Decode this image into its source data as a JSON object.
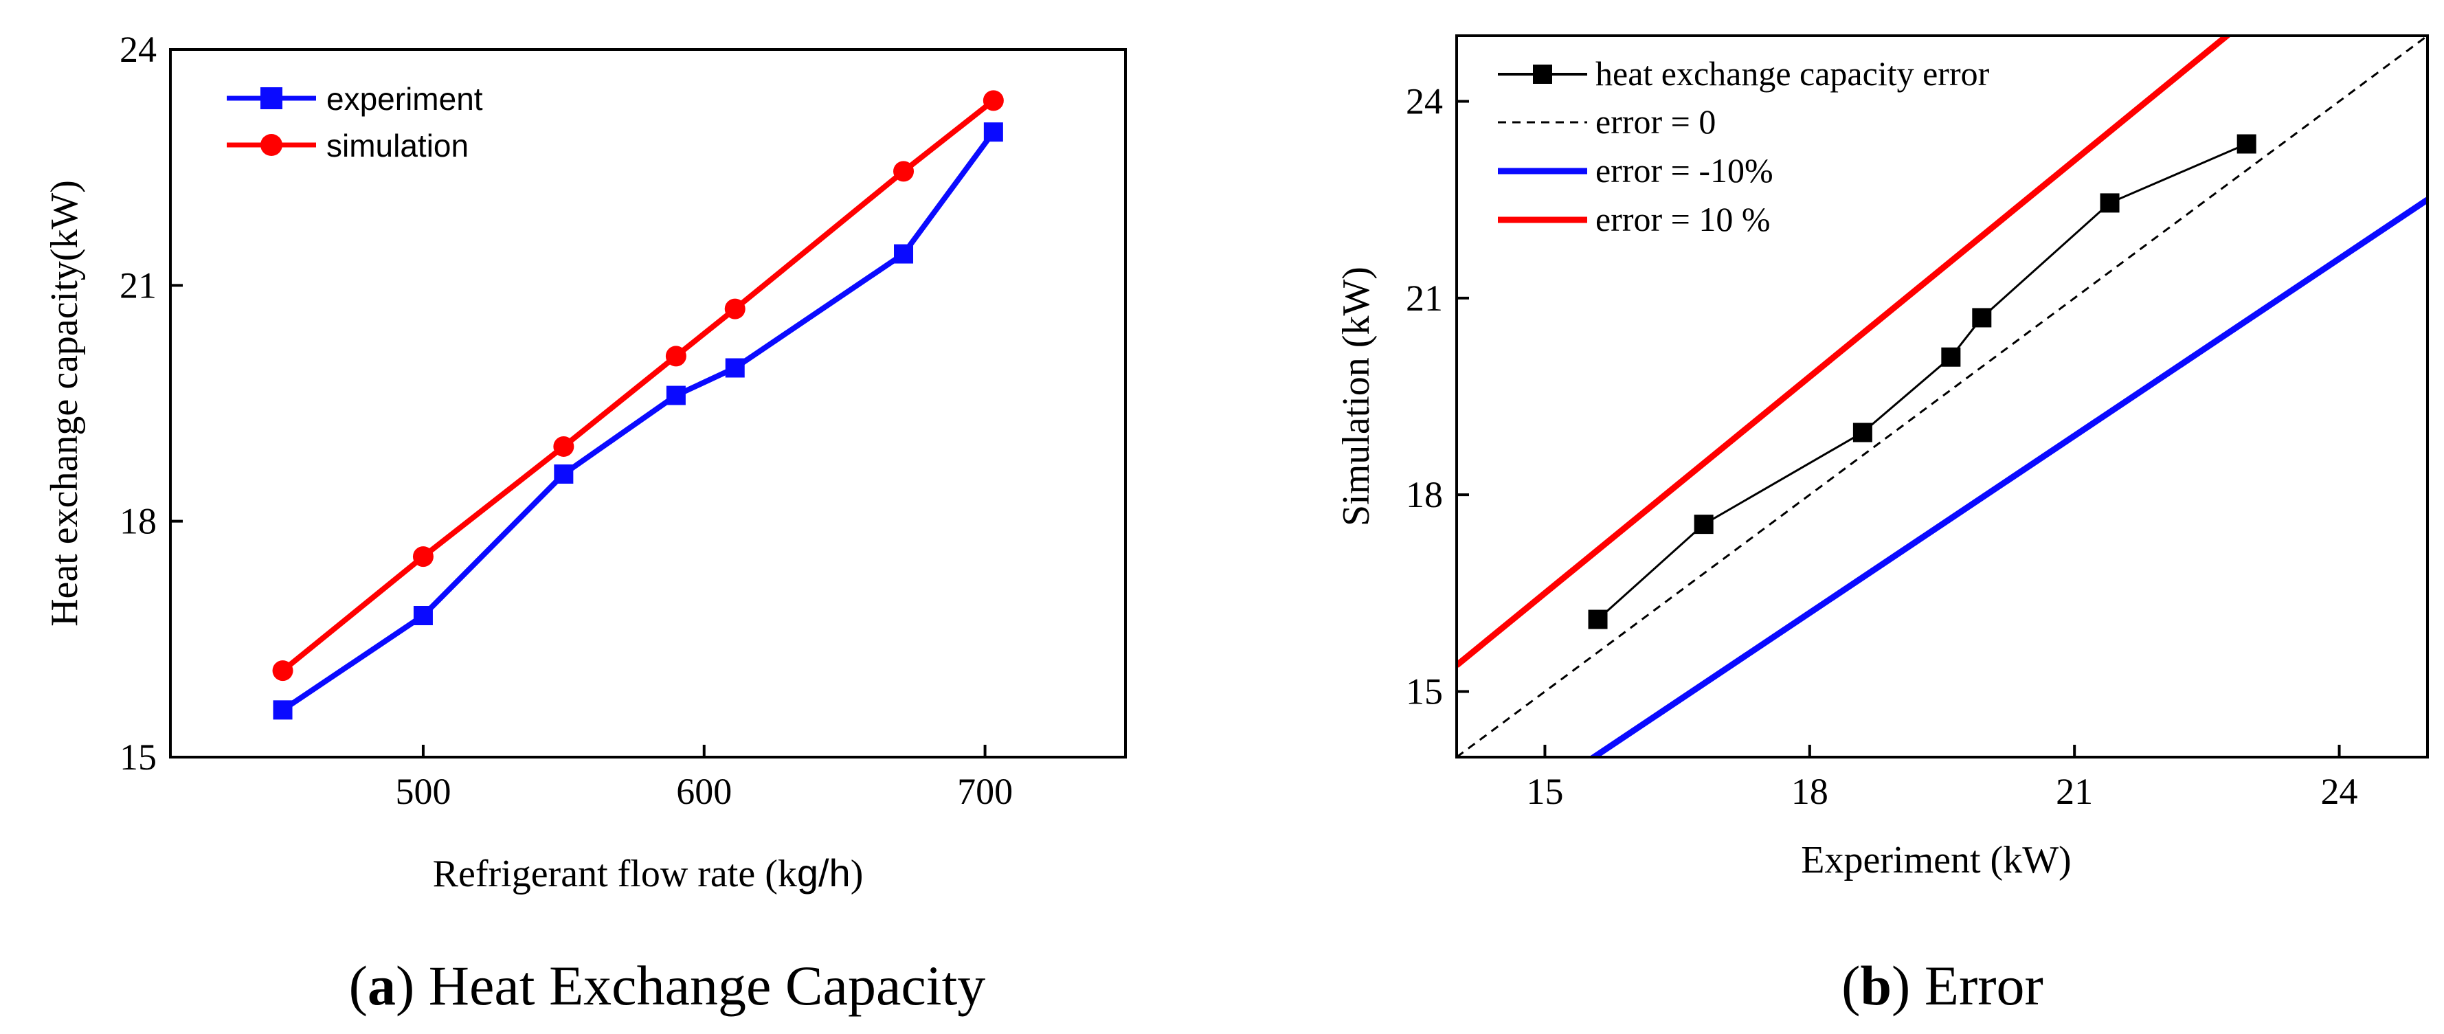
{
  "colors": {
    "experiment": "#0a0aff",
    "simulation": "#ff0000",
    "error_points": "#000000",
    "minus10": "#0a0aff",
    "plus10": "#ff0000"
  },
  "chart_data": [
    {
      "type": "line",
      "title": "",
      "caption_letter": "a",
      "caption_rest": "Heat Exchange Capacity",
      "xlabel_main": "Refrigerant flow rate (k",
      "xlabel_unit": "g/h",
      "xlabel_close": ")",
      "ylabel": "Heat exchange capacity(kW)",
      "xlim": [
        410,
        750
      ],
      "ylim": [
        15,
        24
      ],
      "xticks": [
        500,
        600,
        700
      ],
      "yticks": [
        15,
        18,
        21,
        24
      ],
      "legend_position": "top-left",
      "series": [
        {
          "name": "experiment",
          "marker": "square",
          "x": [
            450,
            500,
            550,
            590,
            611,
            671,
            703
          ],
          "y": [
            15.6,
            16.8,
            18.6,
            19.6,
            19.95,
            21.4,
            22.95
          ]
        },
        {
          "name": "simulation",
          "marker": "circle",
          "x": [
            450,
            500,
            550,
            590,
            611,
            671,
            703
          ],
          "y": [
            16.1,
            17.55,
            18.95,
            20.1,
            20.7,
            22.45,
            23.35
          ]
        }
      ]
    },
    {
      "type": "line",
      "title": "",
      "caption_letter": "b",
      "caption_rest": "Error",
      "xlabel": "Experiment (kW)",
      "ylabel": "Simulation (kW)",
      "xlim": [
        14.0,
        25.0
      ],
      "ylim": [
        14.0,
        25.0
      ],
      "xticks": [
        15,
        18,
        21,
        24
      ],
      "yticks": [
        15,
        18,
        21,
        24
      ],
      "legend_position": "top-left",
      "series": [
        {
          "name": "heat exchange capacity error",
          "style": "line-square",
          "x": [
            15.6,
            16.8,
            18.6,
            19.6,
            19.95,
            21.4,
            22.95
          ],
          "y": [
            16.1,
            17.55,
            18.95,
            20.1,
            20.7,
            22.45,
            23.35
          ]
        },
        {
          "name": "error = 0",
          "style": "dashed",
          "factor": 1.0
        },
        {
          "name": "error = -10%",
          "style": "solid",
          "factor": 0.9
        },
        {
          "name": "error = 10 %",
          "style": "solid",
          "factor": 1.1
        }
      ]
    }
  ]
}
